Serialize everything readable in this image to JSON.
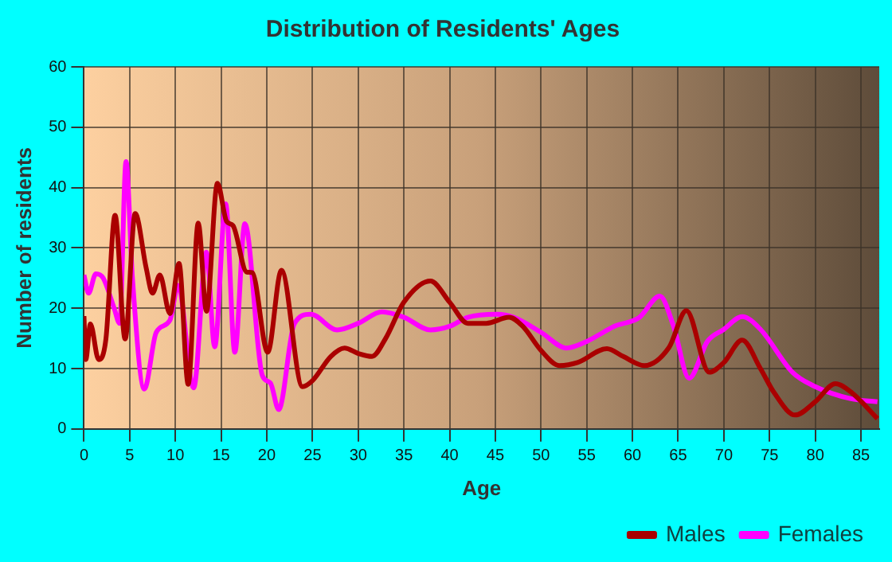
{
  "chart_data": {
    "type": "line",
    "title": "Distribution of Residents' Ages",
    "xlabel": "Age",
    "ylabel": "Number of residents",
    "xlim": [
      0,
      87
    ],
    "xticks": [
      0,
      5,
      10,
      15,
      20,
      25,
      30,
      35,
      40,
      45,
      50,
      55,
      60,
      65,
      70,
      75,
      80,
      85
    ],
    "ylim": [
      0,
      60
    ],
    "yticks": [
      0,
      10,
      20,
      30,
      40,
      50,
      60
    ],
    "grid": true,
    "legend": "bottom right",
    "marker": "none",
    "line_style": "solid",
    "series": [
      {
        "name": "Males",
        "color": "#aa0000",
        "x": [
          0,
          0.2,
          0.7,
          1.6,
          2.4,
          3.4,
          4.5,
          5.6,
          6.8,
          7.5,
          8.3,
          9.4,
          10.4,
          11.4,
          12.5,
          13.4,
          14.6,
          15.6,
          16.3,
          17.8,
          18.4,
          20.1,
          21.6,
          23.9,
          25,
          27,
          28.5,
          30,
          31.5,
          33,
          35,
          37.9,
          40,
          42,
          44,
          46.5,
          48,
          50,
          52,
          54,
          57.2,
          59,
          61.3,
          64,
          65.9,
          68.4,
          70,
          72,
          74,
          75.5,
          77.8,
          80,
          82.2,
          84,
          86.8
        ],
        "values": [
          18.7,
          11.5,
          17.4,
          11.5,
          14.9,
          35.4,
          14.9,
          35.7,
          26.7,
          22.5,
          25.5,
          19.1,
          27.4,
          7.4,
          34.1,
          19.5,
          40.7,
          34.4,
          33.7,
          26,
          25.9,
          12.7,
          26.3,
          7,
          8,
          12,
          13.4,
          12.5,
          12,
          15,
          21,
          24.5,
          21,
          17.5,
          17.5,
          18.5,
          17,
          13,
          10.5,
          11,
          13.3,
          12,
          10.5,
          13.5,
          19.6,
          9.4,
          11,
          14.7,
          10,
          6,
          2.3,
          4.5,
          7.5,
          6,
          1.7
        ]
      },
      {
        "name": "Females",
        "color": "#ff00ff",
        "x": [
          0,
          0.5,
          1.3,
          2.1,
          3.3,
          3.9,
          4.6,
          5.3,
          6.6,
          7.9,
          9.4,
          10.3,
          12,
          13.4,
          14.3,
          15.5,
          16.5,
          17.6,
          19.5,
          20.4,
          21.3,
          23,
          24.8,
          27.7,
          30,
          32.6,
          35,
          37.9,
          40,
          42,
          45.2,
          47,
          50,
          52.8,
          55,
          56.8,
          58,
          60.7,
          63,
          64.5,
          66.2,
          68.2,
          70,
          72,
          74,
          77.5,
          80,
          83.9,
          86.8
        ],
        "values": [
          25.5,
          22.5,
          25.7,
          25,
          20,
          17.5,
          44.3,
          25,
          6.6,
          16,
          18,
          23.8,
          6.8,
          29.3,
          13.6,
          37.3,
          12.7,
          34,
          8.9,
          7.6,
          3.2,
          17.4,
          19,
          16.4,
          17.5,
          19.4,
          18.5,
          16.4,
          17,
          18.5,
          19,
          18.5,
          16,
          13.4,
          14.5,
          16,
          17,
          18.4,
          22,
          17,
          8.4,
          14.5,
          16.5,
          18.6,
          16.5,
          9.4,
          7,
          5,
          4.5
        ]
      }
    ]
  }
}
